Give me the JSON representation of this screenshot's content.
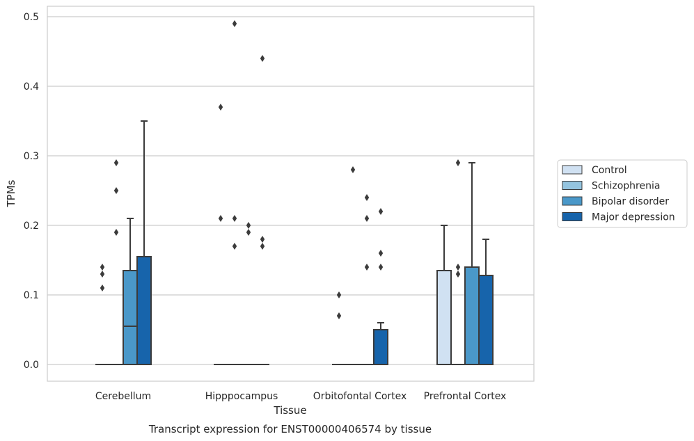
{
  "chart_data": {
    "type": "box",
    "title": "",
    "caption": "Transcript expression for ENST00000406574 by tissue",
    "xlabel": "Tissue",
    "ylabel": "TPMs",
    "ylim": [
      -0.024,
      0.515
    ],
    "yticks": [
      0.0,
      0.1,
      0.2,
      0.3,
      0.4,
      0.5
    ],
    "ytick_labels": [
      "0.0",
      "0.1",
      "0.2",
      "0.3",
      "0.4",
      "0.5"
    ],
    "grid": true,
    "legend_position": "right",
    "categories": [
      "Cerebellum",
      "Hipppocampus",
      "Orbitofontal Cortex",
      "Prefrontal Cortex"
    ],
    "series": [
      {
        "name": "Control",
        "color": "#d0e1f2",
        "boxes": [
          {
            "q1": 0,
            "median": 0,
            "q3": 0,
            "whisker_low": 0,
            "whisker_high": 0,
            "outliers": [
              0.14,
              0.13,
              0.11
            ]
          },
          {
            "q1": 0,
            "median": 0,
            "q3": 0,
            "whisker_low": 0,
            "whisker_high": 0,
            "outliers": [
              0.37,
              0.21
            ]
          },
          {
            "q1": 0,
            "median": 0,
            "q3": 0,
            "whisker_low": 0,
            "whisker_high": 0,
            "outliers": [
              0.1,
              0.07
            ]
          },
          {
            "q1": 0,
            "median": 0,
            "q3": 0.135,
            "whisker_low": 0,
            "whisker_high": 0.2,
            "outliers": []
          }
        ]
      },
      {
        "name": "Schizophrenia",
        "color": "#94c4df",
        "boxes": [
          {
            "q1": 0,
            "median": 0,
            "q3": 0,
            "whisker_low": 0,
            "whisker_high": 0,
            "outliers": [
              0.29,
              0.25,
              0.19
            ]
          },
          {
            "q1": 0,
            "median": 0,
            "q3": 0,
            "whisker_low": 0,
            "whisker_high": 0,
            "outliers": [
              0.49,
              0.21,
              0.17
            ]
          },
          {
            "q1": 0,
            "median": 0,
            "q3": 0,
            "whisker_low": 0,
            "whisker_high": 0,
            "outliers": [
              0.28
            ]
          },
          {
            "q1": 0,
            "median": 0,
            "q3": 0,
            "whisker_low": 0,
            "whisker_high": 0,
            "outliers": [
              0.29,
              0.14,
              0.13
            ]
          }
        ]
      },
      {
        "name": "Bipolar disorder",
        "color": "#4a98c9",
        "boxes": [
          {
            "q1": 0,
            "median": 0.055,
            "q3": 0.135,
            "whisker_low": 0,
            "whisker_high": 0.21,
            "outliers": []
          },
          {
            "q1": 0,
            "median": 0,
            "q3": 0,
            "whisker_low": 0,
            "whisker_high": 0,
            "outliers": [
              0.2,
              0.19
            ]
          },
          {
            "q1": 0,
            "median": 0,
            "q3": 0,
            "whisker_low": 0,
            "whisker_high": 0,
            "outliers": [
              0.24,
              0.21,
              0.14
            ]
          },
          {
            "q1": 0,
            "median": 0,
            "q3": 0.14,
            "whisker_low": 0,
            "whisker_high": 0.29,
            "outliers": []
          }
        ]
      },
      {
        "name": "Major depression",
        "color": "#1764ab",
        "boxes": [
          {
            "q1": 0,
            "median": 0,
            "q3": 0.155,
            "whisker_low": 0,
            "whisker_high": 0.35,
            "outliers": []
          },
          {
            "q1": 0,
            "median": 0,
            "q3": 0,
            "whisker_low": 0,
            "whisker_high": 0,
            "outliers": [
              0.44,
              0.18,
              0.17
            ]
          },
          {
            "q1": 0,
            "median": 0,
            "q3": 0.05,
            "whisker_low": 0,
            "whisker_high": 0.06,
            "outliers": [
              0.22,
              0.16,
              0.14
            ]
          },
          {
            "q1": 0,
            "median": 0,
            "q3": 0.128,
            "whisker_low": 0,
            "whisker_high": 0.18,
            "outliers": []
          }
        ]
      }
    ]
  }
}
